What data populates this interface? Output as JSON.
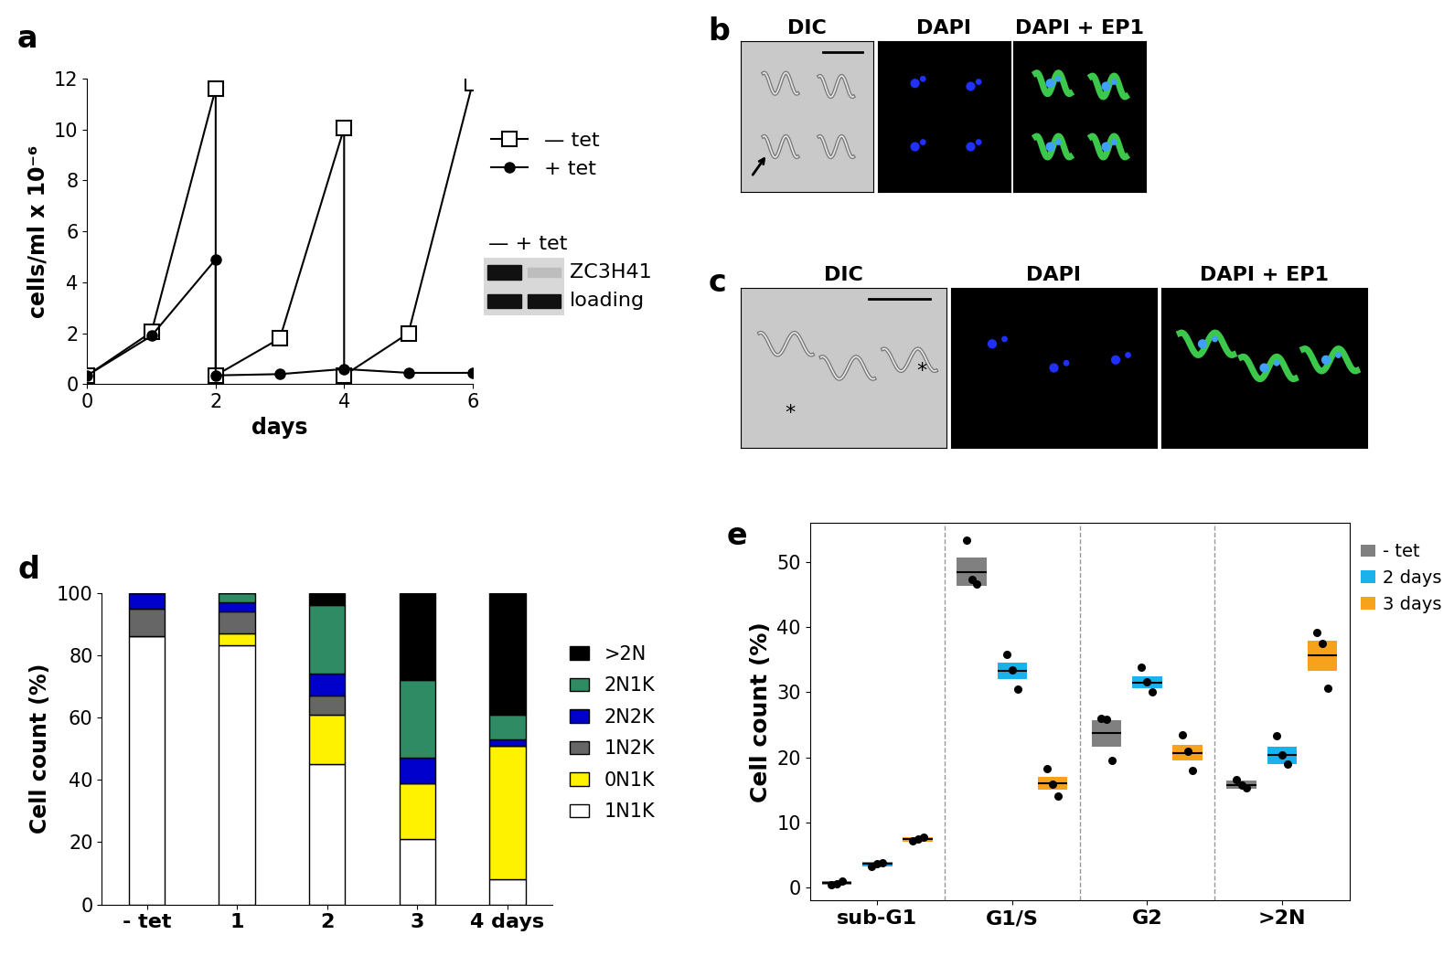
{
  "chart_data": [
    {
      "panel": "a",
      "type": "line",
      "x_label": "days",
      "y_label": "cells/ml x 10⁻⁶",
      "xlim": [
        0,
        6
      ],
      "xticks": [
        0,
        2,
        4,
        6
      ],
      "ylim": [
        0,
        12
      ],
      "yticks": [
        0,
        2,
        4,
        6,
        8,
        10,
        12
      ],
      "legend": "right",
      "series": [
        {
          "name": "— tet",
          "color": "#000000",
          "marker": "open_square",
          "line_style": "solid",
          "x": [
            0,
            1,
            2,
            2,
            3,
            4,
            4,
            5,
            6
          ],
          "values": [
            0.35,
            2.05,
            11.6,
            0.35,
            1.8,
            10.05,
            0.35,
            2.0,
            11.8
          ]
        },
        {
          "name": "+ tet",
          "color": "#000000",
          "marker": "filled_circle",
          "line_style": "solid",
          "x": [
            0,
            1,
            2,
            2,
            3,
            4,
            5,
            6
          ],
          "values": [
            0.35,
            1.9,
            4.9,
            0.35,
            0.4,
            0.6,
            0.45,
            0.45
          ]
        }
      ],
      "inset": {
        "type": "western_blot",
        "columns": "— + tet",
        "rows": [
          "ZC3H41",
          "loading"
        ]
      }
    },
    {
      "panel": "d",
      "type": "bar",
      "stacked": true,
      "y_label": "Cell count (%)",
      "categories": [
        "- tet",
        "1",
        "2",
        "3",
        "4 days"
      ],
      "ylim": [
        0,
        100
      ],
      "yticks": [
        0,
        20,
        40,
        60,
        80,
        100
      ],
      "legend": "right",
      "series": [
        {
          "name": "1N1K",
          "color": "#ffffff",
          "values": [
            86,
            83,
            45,
            21,
            8
          ]
        },
        {
          "name": "0N1K",
          "color": "#fff200",
          "values": [
            0,
            4,
            16,
            18,
            43
          ]
        },
        {
          "name": "1N2K",
          "color": "#666666",
          "values": [
            9,
            7,
            6,
            0,
            0
          ]
        },
        {
          "name": "2N2K",
          "color": "#0000cc",
          "values": [
            5,
            3,
            7,
            8,
            2
          ]
        },
        {
          "name": "2N1K",
          "color": "#2e8b64",
          "values": [
            0,
            3,
            22,
            25,
            8
          ]
        },
        {
          "name": ">2N",
          "color": "#000000",
          "values": [
            0,
            0,
            4,
            28,
            39
          ]
        }
      ]
    },
    {
      "panel": "e",
      "type": "crossbar",
      "y_label": "Cell count (%)",
      "categories": [
        "sub-G1",
        "G1/S",
        "G2",
        ">2N"
      ],
      "ylim": [
        -2,
        56
      ],
      "yticks": [
        0,
        10,
        20,
        30,
        40,
        50
      ],
      "legend": "right",
      "series": [
        {
          "name": "- tet",
          "color": "#808080",
          "values": [
            0.7,
            48.5,
            23.7,
            15.8
          ],
          "errors": [
            0.3,
            2.2,
            2.0,
            0.6
          ],
          "points": [
            [
              0.5,
              0.6,
              1.0
            ],
            [
              53.3,
              47.3,
              46.6
            ],
            [
              26.0,
              25.8,
              19.5
            ],
            [
              16.6,
              15.7,
              15.3
            ]
          ]
        },
        {
          "name": "2 days",
          "color": "#1ab2ec",
          "values": [
            3.6,
            33.3,
            31.5,
            20.3
          ],
          "errors": [
            0.3,
            1.3,
            0.9,
            1.3
          ],
          "points": [
            [
              3.3,
              3.7,
              3.8
            ],
            [
              35.8,
              33.4,
              30.5
            ],
            [
              33.8,
              31.6,
              30.0
            ],
            [
              23.3,
              20.3,
              19.0
            ]
          ]
        },
        {
          "name": "3 days",
          "color": "#f7a21b",
          "values": [
            7.4,
            16.0,
            20.7,
            35.6
          ],
          "errors": [
            0.3,
            1.0,
            1.2,
            2.3
          ],
          "points": [
            [
              7.2,
              7.5,
              7.8
            ],
            [
              18.2,
              15.9,
              14.0
            ],
            [
              23.5,
              20.9,
              18.0
            ],
            [
              39.2,
              37.5,
              30.6
            ]
          ]
        }
      ]
    }
  ],
  "images": [
    {
      "panel": "b",
      "type": "micrograph",
      "columns": [
        "DIC",
        "DAPI",
        "DAPI + EP1"
      ],
      "annotations": []
    },
    {
      "panel": "c",
      "type": "micrograph",
      "columns": [
        "DIC",
        "DAPI",
        "DAPI + EP1"
      ],
      "annotations": [
        "*",
        "*"
      ]
    }
  ]
}
